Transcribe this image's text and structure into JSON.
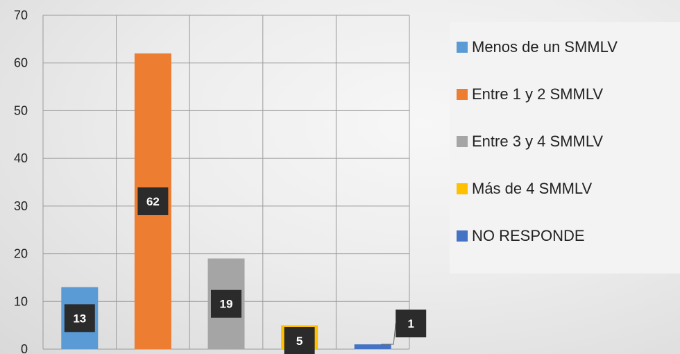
{
  "chart_data": {
    "type": "bar",
    "categories": [
      "Menos de un SMMLV",
      "Entre 1 y 2 SMMLV",
      "Entre 3 y 4 SMMLV",
      "Más de 4 SMMLV",
      "NO RESPONDE"
    ],
    "values": [
      13,
      62,
      19,
      5,
      1
    ],
    "colors": [
      "#5b9bd5",
      "#ed7d31",
      "#a5a5a5",
      "#ffc000",
      "#4472c4"
    ],
    "title": "",
    "xlabel": "",
    "ylabel": "",
    "ylim": [
      0,
      70
    ],
    "yticks": [
      0,
      10,
      20,
      30,
      40,
      50,
      60,
      70
    ],
    "grid": true,
    "legend_position": "right",
    "legend": [
      "Menos de un SMMLV",
      "Entre 1 y 2 SMMLV",
      "Entre 3 y 4 SMMLV",
      "Más de 4 SMMLV",
      "NO RESPONDE"
    ],
    "data_labels": [
      "13",
      "62",
      "19",
      "5",
      "1"
    ]
  }
}
